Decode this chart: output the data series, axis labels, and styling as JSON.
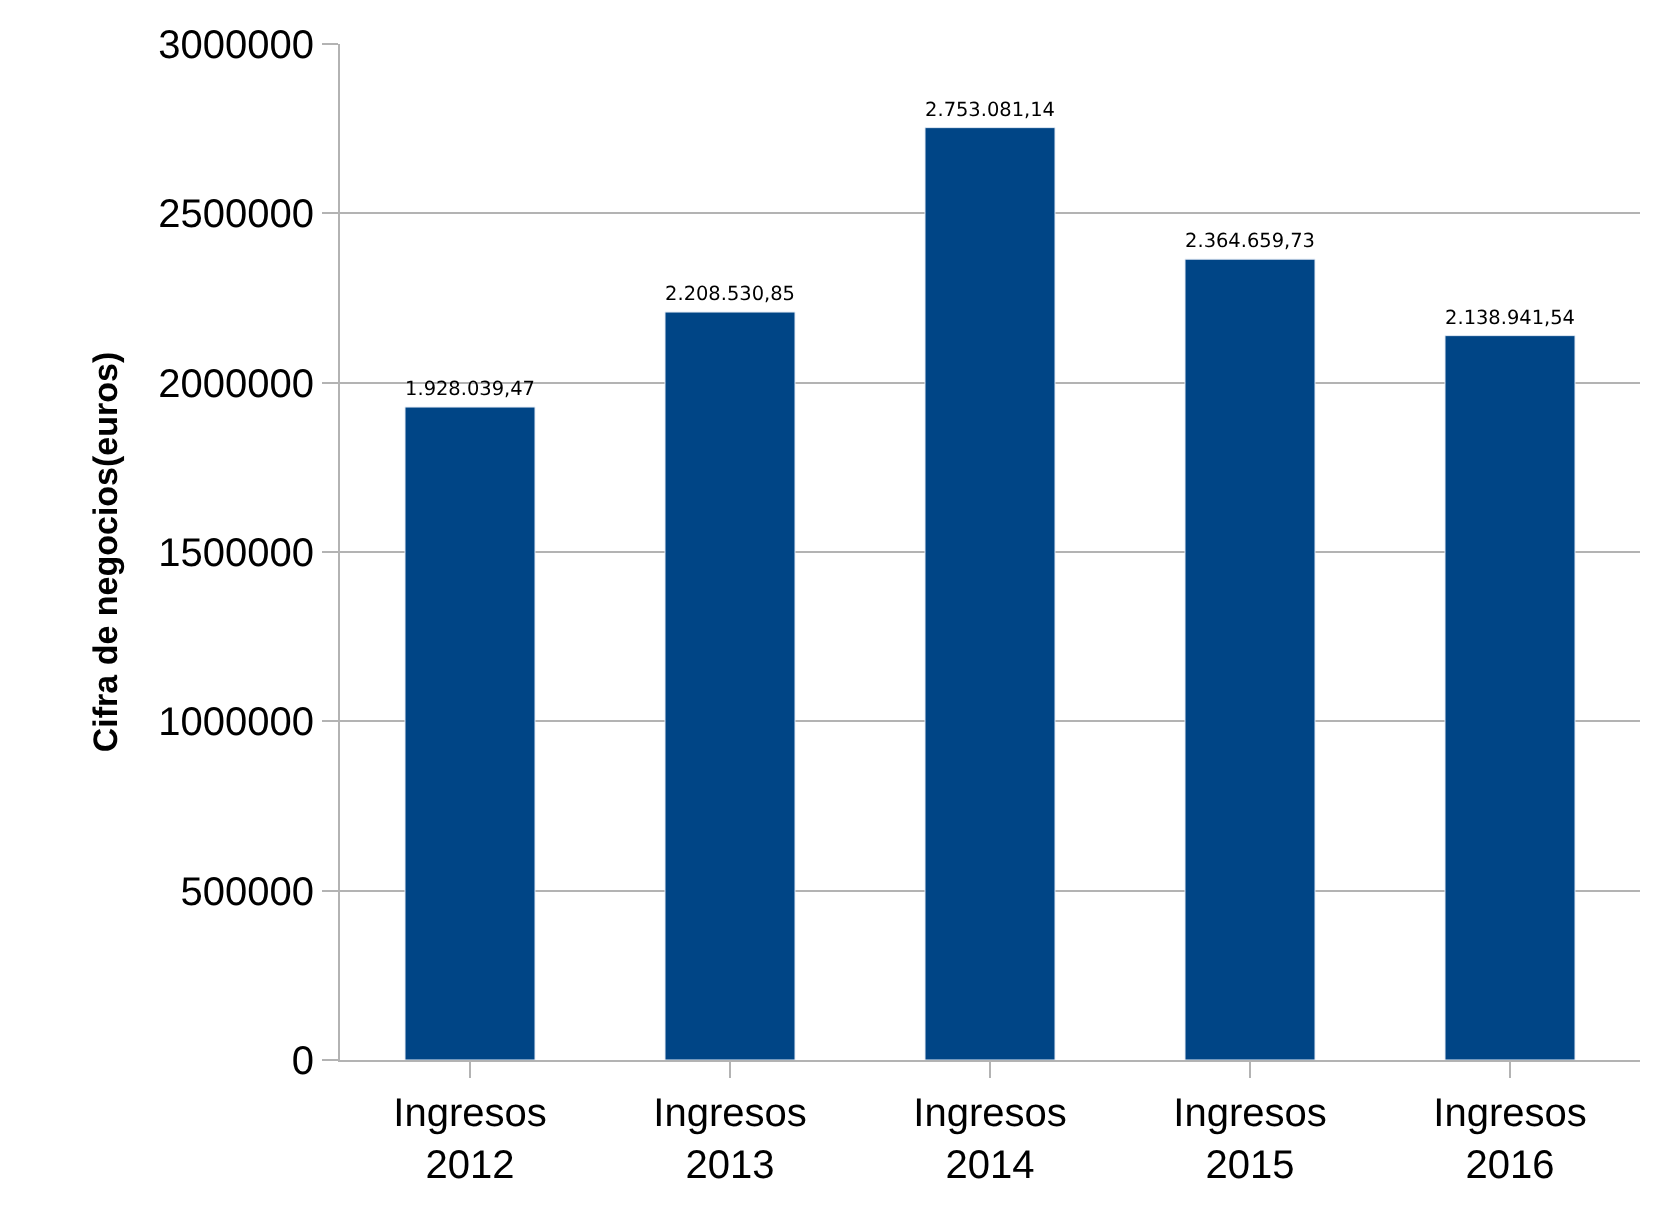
{
  "chart_data": {
    "type": "bar",
    "ylabel": "Cifra de negocios(euros)",
    "categories": [
      "Ingresos\n2012",
      "Ingresos\n2013",
      "Ingresos\n2014",
      "Ingresos\n2015",
      "Ingresos\n2016"
    ],
    "values": [
      1928039.47,
      2208530.85,
      2753081.14,
      2364659.73,
      2138941.54
    ],
    "value_labels": [
      "1.928.039,47",
      "2.208.530,85",
      "2.753.081,14",
      "2.364.659,73",
      "2.138.941,54"
    ],
    "color": "#004586",
    "ylim": [
      0,
      3000000
    ],
    "yticks": [
      0,
      500000,
      1000000,
      1500000,
      2000000,
      2500000,
      3000000
    ],
    "grid": "y"
  }
}
